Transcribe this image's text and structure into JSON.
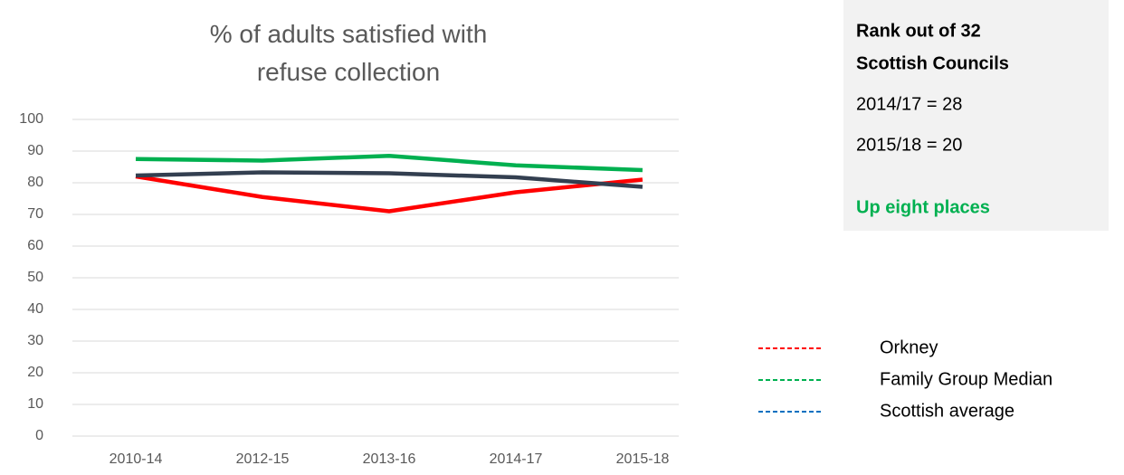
{
  "chart_data": {
    "type": "line",
    "title": "% of adults satisfied with refuse collection",
    "categories": [
      "2010-14",
      "2012-15",
      "2013-16",
      "2014-17",
      "2015-18"
    ],
    "series": [
      {
        "name": "Orkney",
        "color": "#ff0000",
        "legend_color": "#ff0000",
        "values": [
          82,
          75.5,
          71,
          77,
          81
        ]
      },
      {
        "name": "Family Group Median",
        "color": "#00b050",
        "legend_color": "#00b050",
        "values": [
          87.5,
          87,
          88.5,
          85.5,
          84
        ]
      },
      {
        "name": "Scottish average",
        "color": "#333f50",
        "legend_color": "#0070c0",
        "values": [
          82.3,
          83.3,
          83,
          81.7,
          78.7
        ]
      }
    ],
    "ylim": [
      0,
      100
    ],
    "yticks": [
      0,
      10,
      20,
      30,
      40,
      50,
      60,
      70,
      80,
      90,
      100
    ],
    "grid": true,
    "annotations": {
      "heading": [
        "Rank out of 32",
        "Scottish Councils"
      ],
      "lines": [
        "2014/17 = 28",
        "2015/18 = 20"
      ],
      "highlight": "Up eight places"
    }
  }
}
